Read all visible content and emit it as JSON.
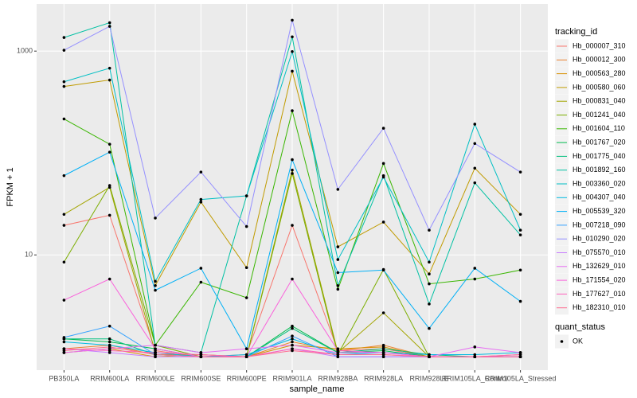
{
  "chart_data": {
    "type": "line",
    "x_label": "sample_name",
    "y_label": "FPKM + 1",
    "log_y": true,
    "grid": true,
    "legend_title": "tracking_id",
    "status_legend_title": "quant_status",
    "status_legend_labels": [
      "OK"
    ],
    "categories": [
      "PB350LA",
      "RRIM600LA",
      "RRIM600LE",
      "RRIM600SE",
      "RRIM600PE",
      "RRIM901LA",
      "RRIM928BA",
      "RRIM928LA",
      "RRIM928LE",
      "RRIM105LA_Control",
      "RRIM105LA_Stressed"
    ],
    "ylim": [
      0.74,
      2900
    ],
    "yticks": [
      10,
      1000
    ],
    "series": [
      {
        "name": "Hb_000007_310",
        "color": "#F8766D",
        "values": [
          19.5,
          24.5,
          1.15,
          1,
          1.05,
          19.5,
          1.15,
          1.2,
          1,
          1,
          1
        ]
      },
      {
        "name": "Hb_000012_300",
        "color": "#EA8331",
        "values": [
          1.2,
          1.3,
          1.05,
          1.05,
          1,
          1.4,
          1.15,
          1.3,
          1,
          1,
          1
        ]
      },
      {
        "name": "Hb_000563_280",
        "color": "#D89000",
        "values": [
          1.1,
          1.2,
          1,
          1.05,
          1,
          1.3,
          1.2,
          1.25,
          1,
          1,
          1.05
        ]
      },
      {
        "name": "Hb_000580_060",
        "color": "#C09B00",
        "values": [
          450,
          520,
          5,
          33,
          7.5,
          635,
          12,
          21,
          6.5,
          71,
          25
        ]
      },
      {
        "name": "Hb_000831_040",
        "color": "#A3A500",
        "values": [
          25,
          46,
          1.1,
          1,
          1,
          68,
          1.1,
          2.7,
          1,
          1,
          1
        ]
      },
      {
        "name": "Hb_001241_040",
        "color": "#7CAE00",
        "values": [
          8.5,
          48,
          1.3,
          1,
          1,
          63,
          1.05,
          7.2,
          1,
          1,
          1
        ]
      },
      {
        "name": "Hb_001604_110",
        "color": "#39B600",
        "values": [
          216,
          122,
          1.3,
          5.4,
          3.8,
          260,
          4.6,
          79,
          5.2,
          5.8,
          7.1
        ]
      },
      {
        "name": "Hb_001767_020",
        "color": "#00BB4E",
        "values": [
          1.5,
          1.4,
          1.2,
          1,
          1,
          2,
          1.1,
          1.15,
          1,
          1,
          1
        ]
      },
      {
        "name": "Hb_001775_040",
        "color": "#00BF7D",
        "values": [
          1.5,
          1.5,
          1.05,
          1,
          1,
          1.9,
          1.1,
          1.2,
          1.05,
          1,
          1
        ]
      },
      {
        "name": "Hb_001892_160",
        "color": "#00C1A3",
        "values": [
          1360,
          1900,
          1.3,
          1.1,
          37.9,
          1380,
          5,
          60,
          3.3,
          51,
          15.7
        ]
      },
      {
        "name": "Hb_003360_020",
        "color": "#00BFC4",
        "values": [
          500,
          680,
          5.5,
          35,
          38,
          990,
          9,
          58,
          8.5,
          192,
          17.5
        ]
      },
      {
        "name": "Hb_004307_040",
        "color": "#00BAE0",
        "values": [
          1.4,
          1.3,
          1.1,
          1,
          1.05,
          1.5,
          1.05,
          1.1,
          1.05,
          1.05,
          1.1
        ]
      },
      {
        "name": "Hb_005539_320",
        "color": "#00B0F6",
        "values": [
          60,
          102,
          4.5,
          7.4,
          1.2,
          86,
          6.7,
          7.1,
          1.9,
          7.4,
          3.5
        ]
      },
      {
        "name": "Hb_007218_090",
        "color": "#35A2FF",
        "values": [
          1.55,
          2,
          1.05,
          1,
          1,
          1.6,
          1,
          1,
          1,
          1,
          1
        ]
      },
      {
        "name": "Hb_010290_020",
        "color": "#9590FF",
        "values": [
          1020,
          1750,
          23,
          65,
          19,
          2010,
          44,
          175,
          17.5,
          124,
          65
        ]
      },
      {
        "name": "Hb_075570_010",
        "color": "#C77CFF",
        "values": [
          1.2,
          1.1,
          1,
          1,
          1,
          1.2,
          1,
          1,
          1,
          1,
          1
        ]
      },
      {
        "name": "Hb_132629_010",
        "color": "#E76BF3",
        "values": [
          1.1,
          1.2,
          1.3,
          1.1,
          1.2,
          1.3,
          1.1,
          1.1,
          1,
          1.25,
          1.1
        ]
      },
      {
        "name": "Hb_171554_020",
        "color": "#FA62DB",
        "values": [
          3.6,
          5.8,
          1.2,
          1,
          1,
          5.8,
          1.15,
          1.1,
          1,
          1,
          1
        ]
      },
      {
        "name": "Hb_177627_010",
        "color": "#FF62BC",
        "values": [
          1.2,
          1.15,
          1.1,
          1.05,
          1,
          1.2,
          1.05,
          1.05,
          1,
          1,
          1.05
        ]
      },
      {
        "name": "Hb_182310_010",
        "color": "#FF6C91",
        "values": [
          1.15,
          1.25,
          1.05,
          1,
          1,
          1.15,
          1.05,
          1.05,
          1,
          1,
          1
        ]
      }
    ]
  }
}
